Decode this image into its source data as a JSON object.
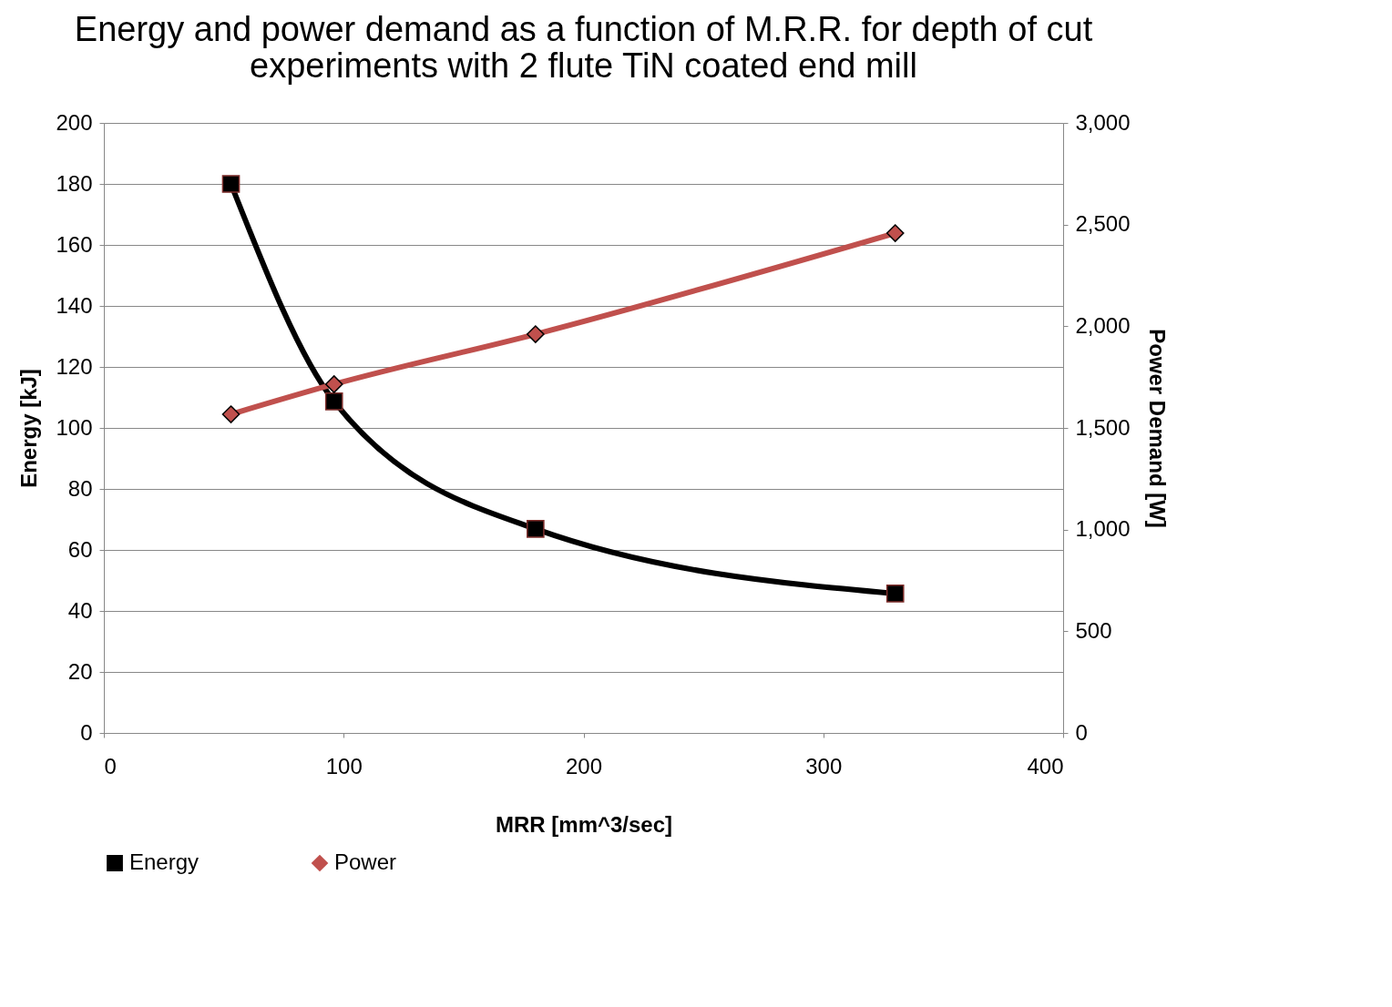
{
  "chart_data": {
    "type": "line",
    "title": [
      "Energy and power demand as a function of M.R.R. for depth of cut",
      "experiments with 2 flute TiN coated end mill"
    ],
    "xlabel": "MRR [mm^3/sec]",
    "ylabel": "Energy [kJ]",
    "y2label": "Power Demand [W]",
    "x": [
      53,
      96,
      180,
      330
    ],
    "series": [
      {
        "name": "Energy",
        "color": "#000000",
        "marker": "square",
        "line_style": "solid",
        "axis": "y",
        "values": [
          180,
          108.7,
          66.9,
          45.7
        ]
      },
      {
        "name": "Power",
        "color": "#c0504d",
        "marker": "diamond",
        "line_style": "solid",
        "axis": "y2",
        "values": [
          1567,
          1715,
          1961,
          2458
        ]
      }
    ],
    "xlim": [
      0,
      400
    ],
    "xticks": [
      0,
      100,
      200,
      300,
      400
    ],
    "ylim": [
      0,
      200
    ],
    "yticks": [
      0,
      20,
      40,
      60,
      80,
      100,
      120,
      140,
      160,
      180,
      200
    ],
    "y2lim": [
      0,
      3000
    ],
    "y2ticks": [
      0,
      500,
      {
        "value": 1000,
        "label": "1,000"
      },
      {
        "value": 1500,
        "label": "1,500"
      },
      {
        "value": 2000,
        "label": "2,000"
      },
      {
        "value": 2500,
        "label": "2,500"
      },
      {
        "value": 3000,
        "label": "3,000"
      }
    ],
    "grid": "y",
    "legend": "bottom"
  }
}
